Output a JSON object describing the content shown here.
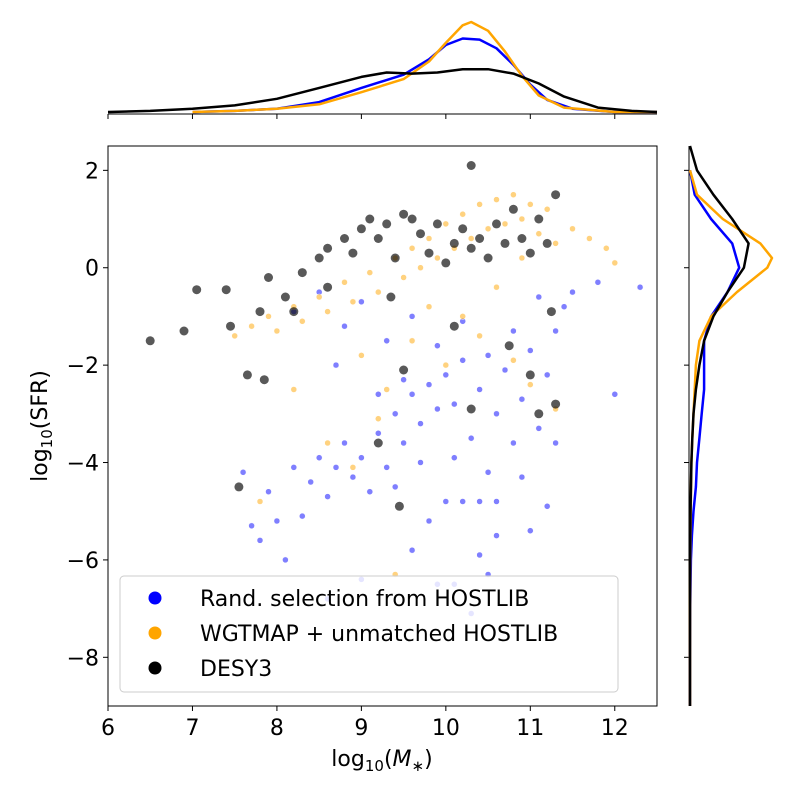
{
  "chart_data": {
    "type": "scatter",
    "xlabel": "log10(M*)",
    "ylabel": "log10(SFR)",
    "xlim": [
      6,
      12.5
    ],
    "ylim": [
      -9,
      2.5
    ],
    "x_ticks": [
      6,
      7,
      8,
      9,
      10,
      11,
      12
    ],
    "y_ticks": [
      2,
      0,
      -2,
      -4,
      -6,
      -8
    ],
    "grid": false,
    "legend_position": "lower-left",
    "series": [
      {
        "name": "Rand. selection from HOSTLIB",
        "color": "#0000ff",
        "points": [
          [
            7.6,
            -4.2
          ],
          [
            7.7,
            -5.3
          ],
          [
            7.8,
            -5.6
          ],
          [
            7.9,
            -4.6
          ],
          [
            8.0,
            -5.2
          ],
          [
            8.1,
            -6.0
          ],
          [
            8.2,
            -4.1
          ],
          [
            8.3,
            -5.1
          ],
          [
            8.4,
            -4.4
          ],
          [
            8.5,
            -3.9
          ],
          [
            8.6,
            -4.7
          ],
          [
            8.7,
            -4.1
          ],
          [
            8.8,
            -3.6
          ],
          [
            8.9,
            -4.3
          ],
          [
            9.0,
            -3.9
          ],
          [
            9.1,
            -4.6
          ],
          [
            9.2,
            -3.4
          ],
          [
            9.3,
            -4.1
          ],
          [
            9.4,
            -3.0
          ],
          [
            9.5,
            -3.6
          ],
          [
            9.6,
            -2.6
          ],
          [
            9.7,
            -3.2
          ],
          [
            9.8,
            -2.4
          ],
          [
            9.9,
            -2.9
          ],
          [
            10.0,
            -2.2
          ],
          [
            10.1,
            -2.8
          ],
          [
            10.2,
            -1.9
          ],
          [
            10.3,
            -3.5
          ],
          [
            10.4,
            -2.5
          ],
          [
            10.5,
            -4.2
          ],
          [
            10.6,
            -3.0
          ],
          [
            10.7,
            -2.1
          ],
          [
            10.8,
            -3.6
          ],
          [
            10.9,
            -2.7
          ],
          [
            11.0,
            -1.7
          ],
          [
            11.1,
            -3.3
          ],
          [
            11.2,
            -2.2
          ],
          [
            11.3,
            -1.3
          ],
          [
            11.4,
            -0.8
          ],
          [
            11.5,
            -0.5
          ],
          [
            11.8,
            -0.3
          ],
          [
            12.0,
            -2.6
          ],
          [
            12.3,
            -0.4
          ],
          [
            8.2,
            -0.9
          ],
          [
            8.5,
            -0.5
          ],
          [
            8.8,
            -1.2
          ],
          [
            9.0,
            -0.7
          ],
          [
            9.3,
            -1.5
          ],
          [
            9.6,
            -1.0
          ],
          [
            9.9,
            -1.6
          ],
          [
            10.2,
            -1.1
          ],
          [
            10.5,
            -1.8
          ],
          [
            10.8,
            -1.3
          ],
          [
            11.1,
            -0.6
          ],
          [
            10.0,
            -4.8
          ],
          [
            10.2,
            -4.8
          ],
          [
            10.4,
            -4.8
          ],
          [
            10.6,
            -4.8
          ],
          [
            9.9,
            -6.5
          ],
          [
            10.1,
            -6.5
          ],
          [
            10.3,
            -7.1
          ],
          [
            10.5,
            -6.3
          ],
          [
            10.6,
            -5.5
          ],
          [
            10.4,
            -5.9
          ],
          [
            9.8,
            -5.2
          ],
          [
            9.6,
            -5.8
          ],
          [
            9.0,
            -6.4
          ],
          [
            8.6,
            -6.8
          ],
          [
            11.2,
            -4.9
          ],
          [
            11.0,
            -5.4
          ],
          [
            9.4,
            -4.5
          ],
          [
            9.7,
            -4.0
          ],
          [
            10.9,
            -4.3
          ],
          [
            11.3,
            -3.6
          ],
          [
            10.1,
            -3.9
          ],
          [
            9.2,
            -2.6
          ],
          [
            8.7,
            -2.0
          ],
          [
            9.5,
            -2.3
          ]
        ]
      },
      {
        "name": "WGTMAP + unmatched HOSTLIB",
        "color": "#ffa500",
        "points": [
          [
            7.5,
            -1.4
          ],
          [
            7.7,
            -1.2
          ],
          [
            7.9,
            -1.0
          ],
          [
            8.0,
            -1.3
          ],
          [
            8.2,
            -0.8
          ],
          [
            8.3,
            -1.1
          ],
          [
            8.5,
            -0.6
          ],
          [
            8.6,
            -0.9
          ],
          [
            8.8,
            -0.3
          ],
          [
            8.9,
            -0.7
          ],
          [
            9.1,
            -0.1
          ],
          [
            9.2,
            -0.5
          ],
          [
            9.4,
            0.2
          ],
          [
            9.5,
            -0.2
          ],
          [
            9.6,
            0.4
          ],
          [
            9.7,
            0.0
          ],
          [
            9.8,
            0.6
          ],
          [
            9.9,
            0.2
          ],
          [
            10.0,
            0.9
          ],
          [
            10.1,
            0.4
          ],
          [
            10.2,
            1.1
          ],
          [
            10.3,
            0.6
          ],
          [
            10.4,
            1.3
          ],
          [
            10.5,
            0.8
          ],
          [
            10.6,
            1.4
          ],
          [
            10.7,
            0.9
          ],
          [
            10.8,
            1.5
          ],
          [
            10.9,
            1.0
          ],
          [
            11.0,
            1.3
          ],
          [
            11.1,
            0.7
          ],
          [
            11.2,
            1.2
          ],
          [
            11.3,
            0.5
          ],
          [
            11.5,
            0.8
          ],
          [
            11.7,
            0.6
          ],
          [
            11.9,
            0.4
          ],
          [
            12.0,
            0.1
          ],
          [
            9.0,
            -1.8
          ],
          [
            9.3,
            -2.5
          ],
          [
            9.6,
            -1.5
          ],
          [
            10.0,
            -2.0
          ],
          [
            10.4,
            -1.4
          ],
          [
            10.8,
            -1.9
          ],
          [
            8.6,
            -3.6
          ],
          [
            8.9,
            -4.1
          ],
          [
            9.2,
            -3.1
          ],
          [
            11.0,
            -2.4
          ],
          [
            11.3,
            -2.9
          ],
          [
            7.8,
            -4.8
          ],
          [
            9.4,
            -6.3
          ],
          [
            8.2,
            -2.5
          ],
          [
            10.2,
            -1.0
          ],
          [
            10.6,
            -0.4
          ],
          [
            9.8,
            -0.8
          ],
          [
            10.9,
            0.2
          ]
        ]
      },
      {
        "name": "DESY3",
        "color": "#000000",
        "points": [
          [
            6.5,
            -1.5
          ],
          [
            6.9,
            -1.3
          ],
          [
            7.05,
            -0.45
          ],
          [
            7.4,
            -0.45
          ],
          [
            7.45,
            -1.2
          ],
          [
            7.65,
            -2.2
          ],
          [
            7.85,
            -2.3
          ],
          [
            7.8,
            -0.9
          ],
          [
            7.9,
            -0.2
          ],
          [
            8.1,
            -0.6
          ],
          [
            8.3,
            -0.1
          ],
          [
            8.5,
            0.2
          ],
          [
            8.6,
            0.4
          ],
          [
            8.6,
            -0.4
          ],
          [
            8.8,
            0.6
          ],
          [
            8.9,
            0.3
          ],
          [
            9.0,
            0.8
          ],
          [
            9.1,
            1.0
          ],
          [
            9.2,
            0.6
          ],
          [
            9.3,
            0.9
          ],
          [
            9.35,
            -0.6
          ],
          [
            9.4,
            0.2
          ],
          [
            9.5,
            1.1
          ],
          [
            9.6,
            1.0
          ],
          [
            9.7,
            0.7
          ],
          [
            9.8,
            0.3
          ],
          [
            9.9,
            0.9
          ],
          [
            10.0,
            0.1
          ],
          [
            10.1,
            0.5
          ],
          [
            10.2,
            0.8
          ],
          [
            10.3,
            0.4
          ],
          [
            10.4,
            0.6
          ],
          [
            10.5,
            0.2
          ],
          [
            10.6,
            0.9
          ],
          [
            10.7,
            0.5
          ],
          [
            10.8,
            1.2
          ],
          [
            10.9,
            0.6
          ],
          [
            11.0,
            0.3
          ],
          [
            11.1,
            1.0
          ],
          [
            11.2,
            0.5
          ],
          [
            11.3,
            1.5
          ],
          [
            10.3,
            2.1
          ],
          [
            9.2,
            -3.6
          ],
          [
            9.5,
            -2.1
          ],
          [
            10.1,
            -1.2
          ],
          [
            10.3,
            -2.9
          ],
          [
            11.0,
            -2.2
          ],
          [
            11.3,
            -2.8
          ],
          [
            11.1,
            -3.0
          ],
          [
            9.45,
            -4.9
          ],
          [
            7.55,
            -4.5
          ],
          [
            11.25,
            -0.9
          ],
          [
            10.75,
            -1.6
          ],
          [
            8.2,
            -0.9
          ]
        ]
      }
    ],
    "top_kde": [
      {
        "name": "Rand. selection from HOSTLIB",
        "color": "#0000ff",
        "x": [
          7.0,
          7.5,
          8.0,
          8.5,
          9.0,
          9.5,
          9.8,
          10.0,
          10.2,
          10.4,
          10.6,
          10.8,
          11.0,
          11.2,
          11.5,
          12.0,
          12.5
        ],
        "density": [
          0.0,
          0.01,
          0.03,
          0.09,
          0.22,
          0.34,
          0.48,
          0.61,
          0.67,
          0.66,
          0.58,
          0.43,
          0.25,
          0.11,
          0.03,
          0.0,
          0.0
        ]
      },
      {
        "name": "WGTMAP + unmatched HOSTLIB",
        "color": "#ffa500",
        "x": [
          7.0,
          7.5,
          8.0,
          8.5,
          9.0,
          9.5,
          9.8,
          10.0,
          10.2,
          10.3,
          10.5,
          10.7,
          10.9,
          11.1,
          11.4,
          12.0,
          12.5
        ],
        "density": [
          0.0,
          0.01,
          0.03,
          0.07,
          0.18,
          0.3,
          0.46,
          0.63,
          0.79,
          0.82,
          0.74,
          0.55,
          0.33,
          0.15,
          0.04,
          0.0,
          0.0
        ]
      },
      {
        "name": "DESY3",
        "color": "#000000",
        "x": [
          6.0,
          6.5,
          7.0,
          7.5,
          8.0,
          8.5,
          9.0,
          9.3,
          9.6,
          9.9,
          10.2,
          10.5,
          10.8,
          11.1,
          11.4,
          11.8,
          12.2,
          12.5
        ],
        "density": [
          0.0,
          0.01,
          0.03,
          0.06,
          0.12,
          0.22,
          0.32,
          0.36,
          0.35,
          0.36,
          0.39,
          0.39,
          0.35,
          0.26,
          0.14,
          0.04,
          0.01,
          0.0
        ]
      }
    ],
    "right_kde": [
      {
        "name": "Rand. selection from HOSTLIB",
        "color": "#0000ff",
        "y": [
          2.0,
          1.5,
          1.0,
          0.5,
          0.0,
          -0.5,
          -1.0,
          -1.5,
          -2.0,
          -2.5,
          -3.0,
          -3.5,
          -4.0,
          -4.5,
          -5.0,
          -5.5,
          -6.0,
          -7.0,
          -8.0,
          -9.0
        ],
        "density": [
          0.0,
          0.02,
          0.09,
          0.18,
          0.21,
          0.16,
          0.09,
          0.06,
          0.06,
          0.06,
          0.05,
          0.04,
          0.03,
          0.025,
          0.015,
          0.008,
          0.004,
          0.001,
          0.0,
          0.0
        ]
      },
      {
        "name": "WGTMAP + unmatched HOSTLIB",
        "color": "#ffa500",
        "y": [
          2.0,
          1.5,
          1.0,
          0.5,
          0.2,
          0.0,
          -0.5,
          -1.0,
          -1.5,
          -2.0,
          -2.5,
          -3.0,
          -3.5,
          -4.0,
          -5.0,
          -6.0,
          -7.0,
          -8.0,
          -9.0
        ],
        "density": [
          0.0,
          0.03,
          0.14,
          0.3,
          0.35,
          0.33,
          0.2,
          0.09,
          0.04,
          0.025,
          0.02,
          0.015,
          0.01,
          0.006,
          0.003,
          0.001,
          0.0,
          0.0,
          0.0
        ]
      },
      {
        "name": "DESY3",
        "color": "#000000",
        "y": [
          2.5,
          2.0,
          1.5,
          1.0,
          0.5,
          0.0,
          -0.5,
          -1.0,
          -1.5,
          -2.0,
          -2.5,
          -3.0,
          -3.5,
          -4.0,
          -5.0,
          -6.0,
          -7.0,
          -8.0,
          -9.0
        ],
        "density": [
          0.0,
          0.03,
          0.1,
          0.18,
          0.25,
          0.23,
          0.16,
          0.1,
          0.06,
          0.04,
          0.025,
          0.015,
          0.01,
          0.006,
          0.002,
          0.0,
          0.0,
          0.0,
          0.0
        ]
      }
    ]
  },
  "legend": {
    "items": [
      {
        "label": "Rand. selection from HOSTLIB",
        "color": "#0000ff"
      },
      {
        "label": "WGTMAP + unmatched HOSTLIB",
        "color": "#ffa500"
      },
      {
        "label": "DESY3",
        "color": "#000000"
      }
    ]
  }
}
